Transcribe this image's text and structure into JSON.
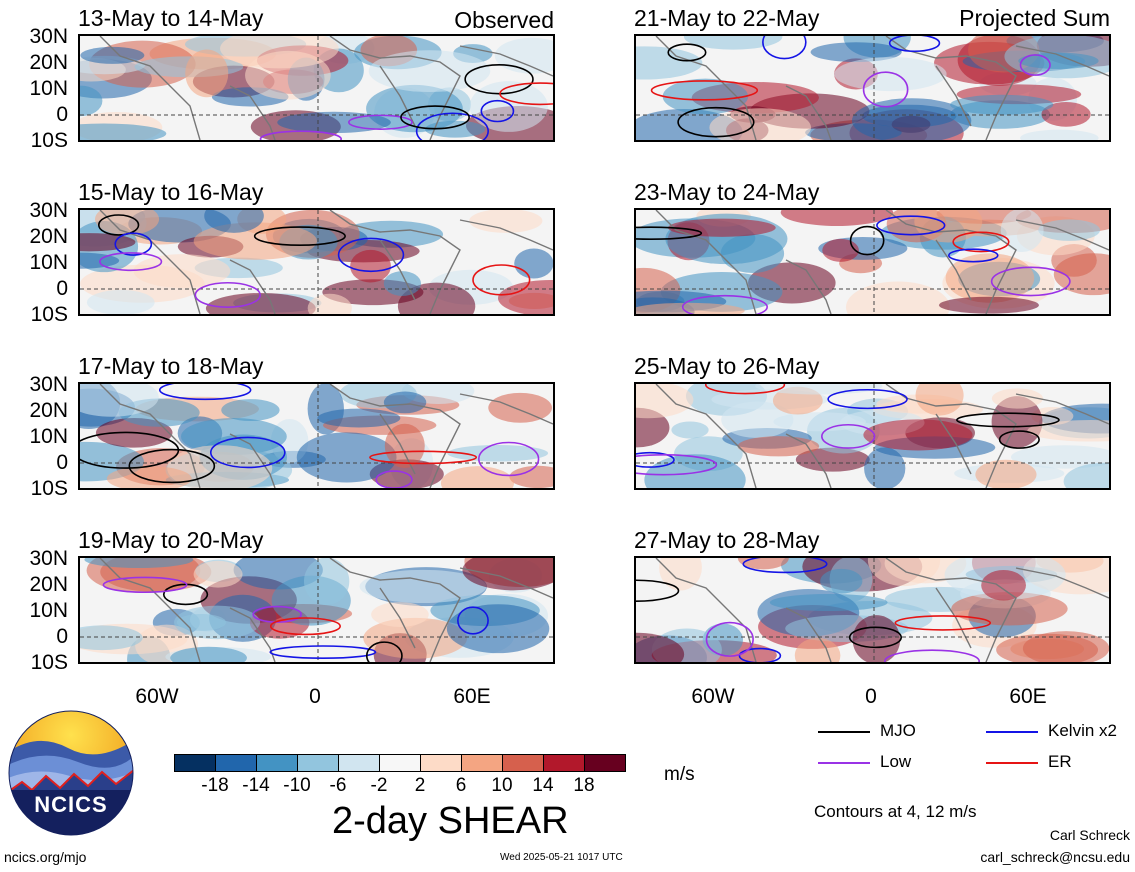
{
  "observed_label": "Observed",
  "projected_label": "Projected Sum",
  "panels": {
    "p1": {
      "title": "13-May to 14-May"
    },
    "p2": {
      "title": "15-May to 16-May"
    },
    "p3": {
      "title": "17-May to 18-May"
    },
    "p4": {
      "title": "19-May to 20-May"
    },
    "p5": {
      "title": "21-May to 22-May"
    },
    "p6": {
      "title": "23-May to 24-May"
    },
    "p7": {
      "title": "25-May to 26-May"
    },
    "p8": {
      "title": "27-May to 28-May"
    }
  },
  "lat_labels": [
    "30N",
    "20N",
    "10N",
    "0",
    "10S"
  ],
  "lon_labels": [
    "60W",
    "0",
    "60E"
  ],
  "legend": {
    "mjo": "MJO",
    "kelvin": "Kelvin x2",
    "low": "Low",
    "er": "ER",
    "colors": {
      "mjo": "#000000",
      "kelvin": "#1414e6",
      "low": "#9a32e6",
      "er": "#e61414"
    }
  },
  "colorbar": {
    "ticks": [
      "-18",
      "-14",
      "-10",
      "-6",
      "-2",
      "2",
      "6",
      "10",
      "14",
      "18"
    ],
    "colors": [
      "#053061",
      "#2166ac",
      "#4393c3",
      "#92c5de",
      "#d1e5f0",
      "#f7f7f7",
      "#fddbc7",
      "#f4a582",
      "#d6604d",
      "#b2182b",
      "#67001f"
    ],
    "units": "m/s"
  },
  "main_title": "2-day SHEAR",
  "contours_note": "Contours at 4, 12 m/s",
  "author": "Carl Schreck",
  "email": "carl_schreck@ncsu.edu",
  "site": "ncics.org/mjo",
  "timestamp": "Wed 2025-05-21 1017 UTC",
  "logo_text": "NCICS"
}
